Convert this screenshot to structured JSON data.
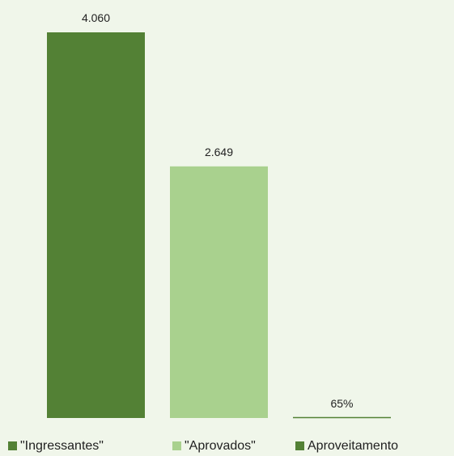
{
  "chart_data": {
    "type": "bar",
    "categories": [
      "\"Ingressantes\"",
      "\"Aprovados\"",
      "Aproveitamento"
    ],
    "values": [
      4060,
      2649,
      0.65
    ],
    "data_labels": [
      "4.060",
      "2.649",
      "65%"
    ],
    "colors": [
      "#538135",
      "#a9d18e",
      "#538135"
    ],
    "legend": {
      "position": "bottom",
      "entries": [
        "\"Ingressantes\"",
        "\"Aprovados\"",
        "Aproveitamento"
      ]
    },
    "ylim": [
      0,
      4060
    ],
    "grid": false,
    "title": "",
    "xlabel": "",
    "ylabel": ""
  }
}
